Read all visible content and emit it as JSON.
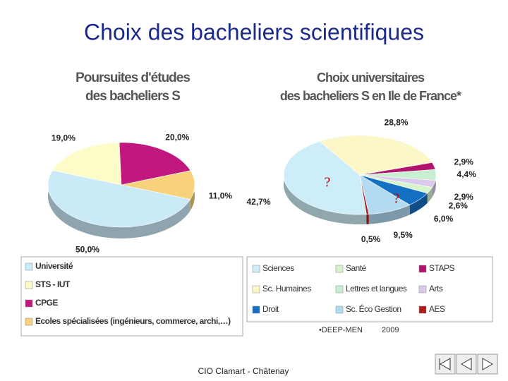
{
  "title": "Choix des bacheliers scientifiques",
  "chart_data": [
    {
      "type": "pie",
      "title": [
        "Poursuites d'études",
        "des bacheliers S"
      ],
      "categories": [
        "Université",
        "STS - IUT",
        "CPGE",
        "Ecoles spécialisées (ingénieurs, commerce, archi,…)"
      ],
      "values": [
        50.0,
        19.0,
        20.0,
        11.0
      ],
      "value_labels": [
        "50,0%",
        "19,0%",
        "20,0%",
        "11,0%"
      ],
      "colors": [
        "#cbeaf8",
        "#fdfcc9",
        "#c0187f",
        "#f8d27a"
      ],
      "legend": "bottom"
    },
    {
      "type": "pie",
      "title": [
        "Choix universitaires",
        "des bacheliers S en Ile de France*"
      ],
      "categories": [
        "Sciences",
        "Santé",
        "STAPS",
        "Sc. Humaines",
        "Lettres et langues",
        "Arts",
        "Droit",
        "Sc. Éco Gestion",
        "AES"
      ],
      "values": [
        42.7,
        2.6,
        2.9,
        28.8,
        4.4,
        2.9,
        6.0,
        9.5,
        0.5
      ],
      "value_labels": [
        "42,7%",
        "2,6%",
        "2,9%",
        "28,8%",
        "4,4%",
        "2,9%",
        "6,0%",
        "9,5%",
        "0,5%"
      ],
      "colors": [
        "#cdeef9",
        "#d6f4cc",
        "#b0126e",
        "#fbf7c6",
        "#c8efd2",
        "#d9c9ea",
        "#1570c4",
        "#b2daf1",
        "#b01c1c"
      ],
      "annotations": [
        "?",
        "?"
      ],
      "legend": "bottom",
      "source": "•DEEP-MEN",
      "year": "2009"
    }
  ],
  "footer": "CIO Clamart - Châtenay"
}
